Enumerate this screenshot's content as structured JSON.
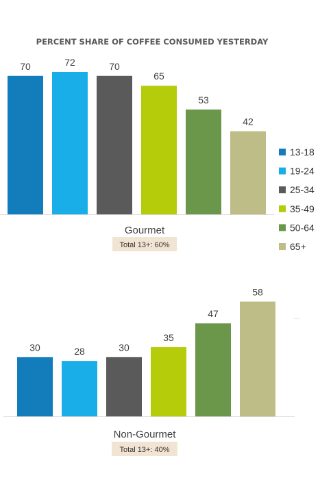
{
  "chart_data": [
    {
      "type": "bar",
      "title": "PERCENT SHARE OF COFFEE CONSUMED YESTERDAY",
      "categories": [
        "13-18",
        "19-24",
        "25-34",
        "35-49",
        "50-64",
        "65+"
      ],
      "values": [
        70,
        72,
        70,
        65,
        53,
        42
      ],
      "group_label": "Gourmet",
      "total_label": "Total 13+: 60%",
      "ylim": [
        0,
        90
      ],
      "grid": false,
      "legend": "right"
    },
    {
      "type": "bar",
      "title": "",
      "categories": [
        "13-18",
        "19-24",
        "25-34",
        "35-49",
        "50-64",
        "65+"
      ],
      "values": [
        30,
        28,
        30,
        35,
        47,
        58
      ],
      "group_label": "Non-Gourmet",
      "total_label": "Total 13+: 40%",
      "ylim": [
        0,
        72
      ],
      "grid": false,
      "legend": "none"
    }
  ],
  "legend": {
    "items": [
      {
        "label": "13-18",
        "color": "#137dbb"
      },
      {
        "label": "19-24",
        "color": "#1aaee9"
      },
      {
        "label": "25-34",
        "color": "#5a5a5a"
      },
      {
        "label": "35-49",
        "color": "#b5cc0a"
      },
      {
        "label": "50-64",
        "color": "#6b974a"
      },
      {
        "label": "65+",
        "color": "#bfbd87"
      }
    ]
  },
  "colors": {
    "total_badge_bg": "#f2e4d2",
    "axis_line": "#d9d9d9",
    "text": "#404040"
  }
}
